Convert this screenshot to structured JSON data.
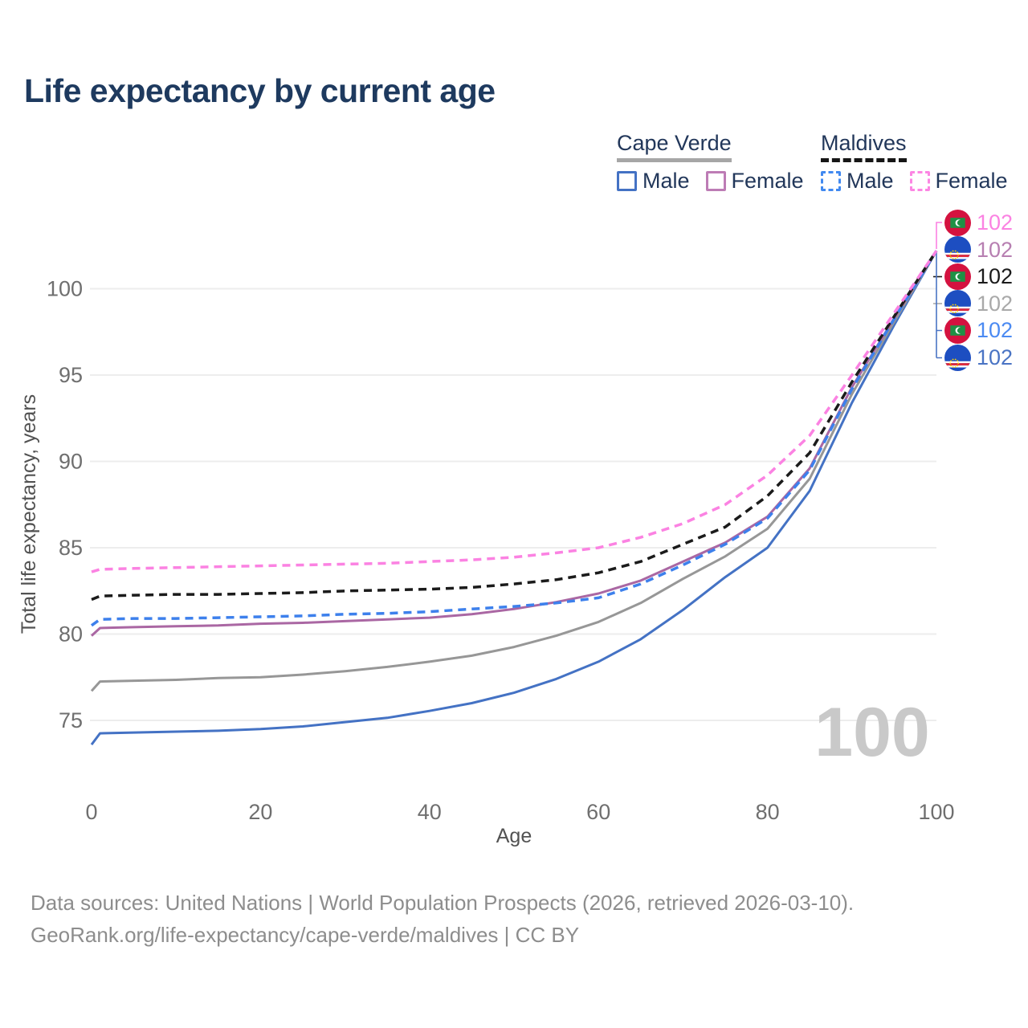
{
  "title": "Life expectancy by current age",
  "watermark": "100",
  "legend": {
    "groups": [
      {
        "label": "Cape Verde",
        "line_style": "solid",
        "underline_color": "#a6a6a6",
        "items": [
          {
            "label": "Male",
            "color": "#4472c4",
            "dashed": false
          },
          {
            "label": "Female",
            "color": "#bd7cb5",
            "dashed": false
          }
        ]
      },
      {
        "label": "Maldives",
        "line_style": "dashed",
        "underline_color": "#161616",
        "items": [
          {
            "label": "Male",
            "color": "#4189f0",
            "dashed": true
          },
          {
            "label": "Female",
            "color": "#fc86e3",
            "dashed": true
          }
        ]
      }
    ]
  },
  "chart_data": {
    "type": "line",
    "title": "Life expectancy by current age",
    "xlabel": "Age",
    "ylabel": "Total life expectancy, years",
    "x_ticks": [
      0,
      20,
      40,
      60,
      80,
      100
    ],
    "y_ticks": [
      75,
      80,
      85,
      90,
      95,
      100
    ],
    "xlim": [
      0,
      100
    ],
    "ylim": [
      73,
      103
    ],
    "grid": "horizontal",
    "legend_position": "top-right",
    "x": [
      0,
      1,
      5,
      10,
      15,
      20,
      25,
      30,
      35,
      40,
      45,
      50,
      55,
      60,
      65,
      70,
      75,
      80,
      85,
      90,
      95,
      100
    ],
    "series": [
      {
        "name": "Cape Verde Male",
        "country": "Cape Verde",
        "sex": "Male",
        "color": "#4472c4",
        "dashed": false,
        "values": [
          73.6,
          74.25,
          74.3,
          74.35,
          74.4,
          74.5,
          74.65,
          74.9,
          75.15,
          75.55,
          76.0,
          76.6,
          77.4,
          78.4,
          79.7,
          81.4,
          83.3,
          85.0,
          88.3,
          93.4,
          97.9,
          102.2
        ],
        "end_label": "102"
      },
      {
        "name": "Cape Verde Total",
        "country": "Cape Verde",
        "sex": "Both",
        "color": "#979797",
        "dashed": false,
        "values": [
          76.7,
          77.25,
          77.3,
          77.35,
          77.45,
          77.5,
          77.65,
          77.85,
          78.1,
          78.4,
          78.75,
          79.25,
          79.9,
          80.7,
          81.8,
          83.2,
          84.5,
          86.1,
          89.0,
          93.9,
          98.1,
          102.2
        ],
        "end_label": "102"
      },
      {
        "name": "Cape Verde Female",
        "country": "Cape Verde",
        "sex": "Female",
        "color": "#aa67a3",
        "dashed": false,
        "values": [
          79.9,
          80.35,
          80.4,
          80.45,
          80.5,
          80.6,
          80.65,
          80.75,
          80.85,
          80.95,
          81.15,
          81.45,
          81.85,
          82.35,
          83.1,
          84.2,
          85.3,
          86.8,
          89.6,
          94.3,
          98.3,
          102.2
        ],
        "end_label": "102"
      },
      {
        "name": "Maldives Male",
        "country": "Maldives",
        "sex": "Male",
        "color": "#3d80ec",
        "dashed": true,
        "values": [
          80.5,
          80.85,
          80.9,
          80.9,
          80.95,
          81.0,
          81.05,
          81.15,
          81.2,
          81.3,
          81.45,
          81.6,
          81.8,
          82.1,
          82.9,
          84.0,
          85.2,
          86.7,
          89.5,
          94.2,
          98.25,
          102.2
        ],
        "end_label": "102"
      },
      {
        "name": "Maldives Total",
        "country": "Maldives",
        "sex": "Both",
        "color": "#1b1b1b",
        "dashed": true,
        "values": [
          82.0,
          82.2,
          82.25,
          82.3,
          82.3,
          82.35,
          82.4,
          82.5,
          82.55,
          82.6,
          82.7,
          82.9,
          83.15,
          83.55,
          84.2,
          85.2,
          86.2,
          88.0,
          90.5,
          94.6,
          98.4,
          102.2
        ],
        "end_label": "102"
      },
      {
        "name": "Maldives Female",
        "country": "Maldives",
        "sex": "Female",
        "color": "#fb82e2",
        "dashed": true,
        "values": [
          83.6,
          83.75,
          83.8,
          83.85,
          83.9,
          83.95,
          84.0,
          84.05,
          84.1,
          84.2,
          84.3,
          84.45,
          84.7,
          85.0,
          85.6,
          86.4,
          87.5,
          89.2,
          91.5,
          95.0,
          98.6,
          102.2
        ],
        "end_label": "102"
      }
    ]
  },
  "end_labels": [
    {
      "series": "Maldives Female",
      "flag": "maldives",
      "value": "102",
      "color": "#fb82e2"
    },
    {
      "series": "Cape Verde Female",
      "flag": "cape-verde",
      "value": "102",
      "color": "#b77fb1"
    },
    {
      "series": "Maldives Total",
      "flag": "maldives",
      "value": "102",
      "color": "#1b1b1b"
    },
    {
      "series": "Cape Verde Total",
      "flag": "cape-verde",
      "value": "102",
      "color": "#a9a9a9"
    },
    {
      "series": "Maldives Male",
      "flag": "maldives",
      "value": "102",
      "color": "#4b8af2"
    },
    {
      "series": "Cape Verde Male",
      "flag": "cape-verde",
      "value": "102",
      "color": "#4a74c4"
    }
  ],
  "flag_colors": {
    "maldives": {
      "red": "#d4123f",
      "green": "#1f9145",
      "crescent": "#ffffff"
    },
    "cape_verde": {
      "blue": "#1d4ec1",
      "stripe_red": "#e02a3d",
      "stripe_white": "#ffffff",
      "stars": "#ffd200"
    }
  },
  "footer": {
    "line1": "Data sources: United Nations | World Population Prospects (2026, retrieved 2026-03-10).",
    "line2": "GeoRank.org/life-expectancy/cape-verde/maldives | CC BY"
  }
}
